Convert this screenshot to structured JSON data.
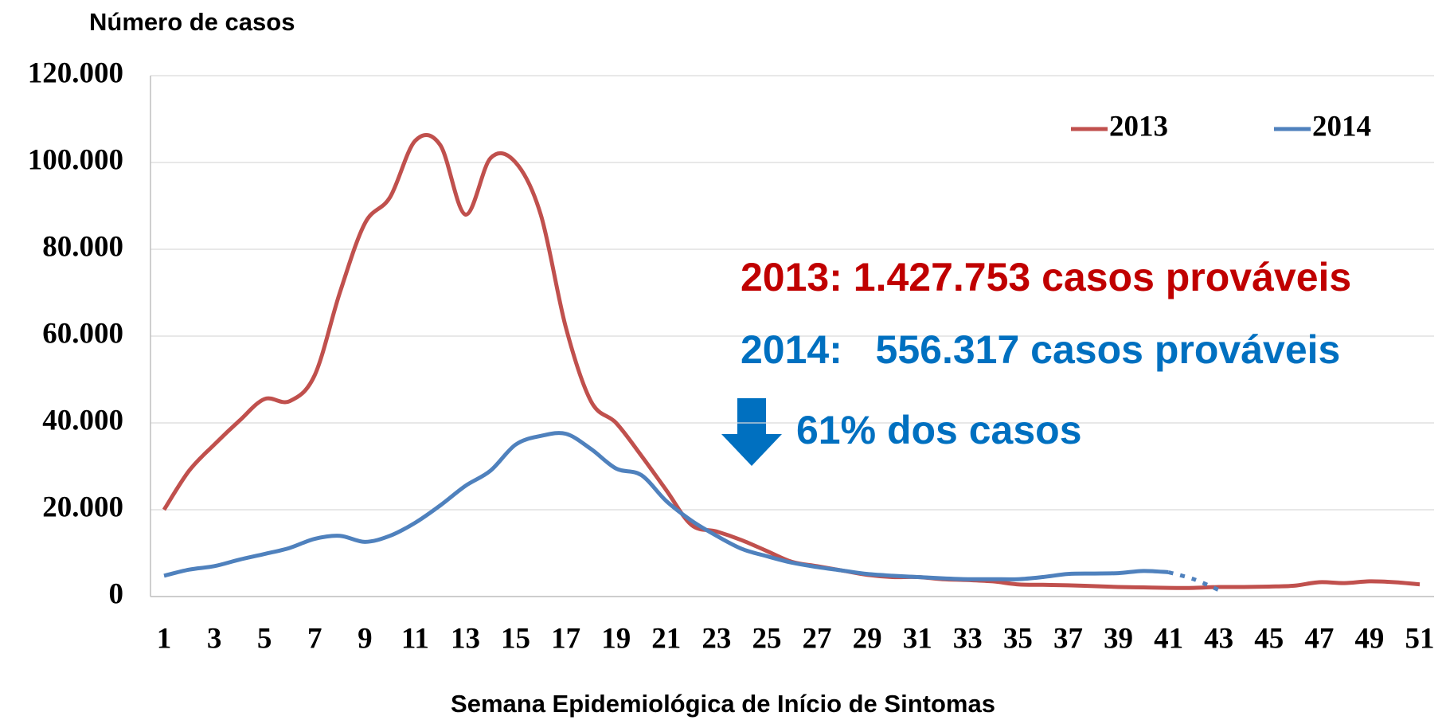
{
  "chart_data": {
    "type": "line",
    "y_axis_title": "Número de casos",
    "x_axis_title": "Semana Epidemiológica de Início de Sintomas",
    "categories": [
      1,
      null,
      3,
      null,
      5,
      null,
      7,
      null,
      9,
      null,
      11,
      null,
      13,
      null,
      15,
      null,
      17,
      null,
      19,
      null,
      21,
      null,
      23,
      null,
      25,
      null,
      27,
      null,
      29,
      null,
      31,
      null,
      33,
      null,
      35,
      null,
      37,
      null,
      39,
      null,
      41,
      null,
      43,
      null,
      45,
      null,
      47,
      null,
      49,
      null,
      51
    ],
    "series": [
      {
        "name": "2013",
        "color": "#c0504d",
        "values": [
          20000,
          29000,
          35000,
          40500,
          45500,
          45000,
          51000,
          70000,
          86000,
          92000,
          105000,
          104000,
          88000,
          101000,
          100000,
          88000,
          62000,
          45000,
          40000,
          32500,
          24500,
          16500,
          15000,
          13000,
          10500,
          8000,
          7000,
          6000,
          5000,
          4500,
          4500,
          4000,
          3800,
          3500,
          2800,
          2700,
          2600,
          2400,
          2200,
          2100,
          2000,
          2000,
          2200,
          2200,
          2300,
          2500,
          3300,
          3100,
          3500,
          3300,
          2800
        ]
      },
      {
        "name": "2014",
        "color": "#4f81bd",
        "dashed_from": 40,
        "values": [
          4800,
          6200,
          7000,
          8500,
          9800,
          11200,
          13300,
          14000,
          12600,
          14000,
          17000,
          21000,
          25500,
          29000,
          35000,
          37000,
          37500,
          34000,
          29500,
          28000,
          22000,
          17500,
          14000,
          11000,
          9300,
          7800,
          6800,
          6000,
          5200,
          4800,
          4500,
          4200,
          4000,
          4000,
          4000,
          4500,
          5200,
          5300,
          5400,
          5900,
          5600,
          4000,
          1500,
          null,
          null,
          null,
          null,
          null,
          null,
          null,
          null
        ]
      }
    ],
    "ylim": [
      0,
      120000
    ],
    "yticks": [
      0,
      {
        "value": 20000,
        "label": "20.000"
      },
      {
        "value": 40000,
        "label": "40.000"
      },
      {
        "value": 60000,
        "label": "60.000"
      },
      {
        "value": 80000,
        "label": "80.000"
      },
      {
        "value": 100000,
        "label": "100.000"
      },
      {
        "value": 120000,
        "label": "120.000"
      }
    ],
    "grid": true,
    "legend": "top-right",
    "annotations": [
      {
        "text": "2013: 1.427.753 casos prováveis",
        "color": "#c00000"
      },
      {
        "text": "2014:   556.317 casos prováveis",
        "color": "#0070c0"
      },
      {
        "text": "61% dos casos",
        "color": "#0070c0"
      }
    ]
  }
}
